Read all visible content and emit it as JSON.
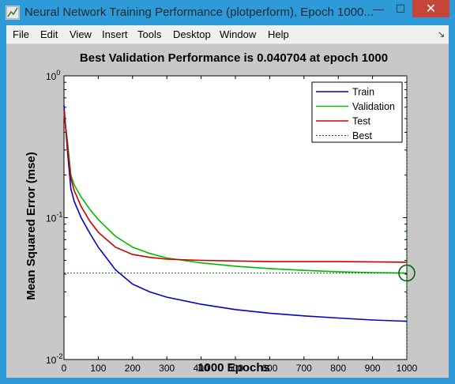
{
  "window": {
    "title": "Neural Network Training Performance (plotperform), Epoch 1000...",
    "minimize_label": "—",
    "maximize_label": "☐",
    "close_label": "✕",
    "icon": "matlab-figure-icon",
    "colors": {
      "titlebar": "#2f9ad8",
      "close": "#c7463a"
    }
  },
  "menubar": {
    "items": [
      {
        "label": "File"
      },
      {
        "label": "Edit"
      },
      {
        "label": "View"
      },
      {
        "label": "Insert"
      },
      {
        "label": "Tools"
      },
      {
        "label": "Desktop"
      },
      {
        "label": "Window"
      },
      {
        "label": "Help"
      }
    ],
    "dock_icon": "dock-arrow-icon"
  },
  "chart_data": {
    "type": "line",
    "title": "Best Validation Performance is 0.040704 at epoch 1000",
    "xlabel": "1000 Epochs",
    "ylabel": "Mean Squared Error  (mse)",
    "xlim": [
      0,
      1000
    ],
    "ylim": [
      0.01,
      1
    ],
    "yscale": "log",
    "xticks": [
      0,
      100,
      200,
      300,
      400,
      500,
      600,
      700,
      800,
      900,
      1000
    ],
    "yticks": [
      {
        "value": 1,
        "base": "10",
        "exp": "0"
      },
      {
        "value": 0.1,
        "base": "10",
        "exp": "-1"
      },
      {
        "value": 0.01,
        "base": "10",
        "exp": "-2"
      }
    ],
    "legend_position": "top-right",
    "series": [
      {
        "name": "Train",
        "color": "#0000cc",
        "x": [
          0,
          10,
          20,
          30,
          50,
          75,
          100,
          150,
          200,
          250,
          300,
          400,
          500,
          600,
          700,
          800,
          900,
          1000
        ],
        "y": [
          0.62,
          0.3,
          0.16,
          0.13,
          0.1,
          0.078,
          0.062,
          0.043,
          0.034,
          0.03,
          0.0275,
          0.0245,
          0.0225,
          0.0212,
          0.0203,
          0.0196,
          0.019,
          0.0186
        ]
      },
      {
        "name": "Validation",
        "color": "#00bb00",
        "x": [
          0,
          10,
          20,
          30,
          50,
          75,
          100,
          150,
          200,
          250,
          300,
          400,
          500,
          600,
          700,
          800,
          900,
          1000
        ],
        "y": [
          0.55,
          0.35,
          0.2,
          0.17,
          0.14,
          0.115,
          0.097,
          0.074,
          0.062,
          0.056,
          0.052,
          0.048,
          0.0455,
          0.0438,
          0.0425,
          0.0416,
          0.041,
          0.0407
        ]
      },
      {
        "name": "Test",
        "color": "#cc0000",
        "x": [
          0,
          10,
          20,
          30,
          50,
          75,
          100,
          150,
          200,
          250,
          300,
          400,
          500,
          600,
          700,
          800,
          900,
          1000
        ],
        "y": [
          0.58,
          0.32,
          0.19,
          0.155,
          0.12,
          0.095,
          0.079,
          0.062,
          0.055,
          0.0525,
          0.051,
          0.05,
          0.0495,
          0.049,
          0.049,
          0.049,
          0.0488,
          0.0485
        ]
      }
    ],
    "best": {
      "name": "Best",
      "color": "#006600",
      "epoch": 1000,
      "value": 0.040704
    }
  }
}
